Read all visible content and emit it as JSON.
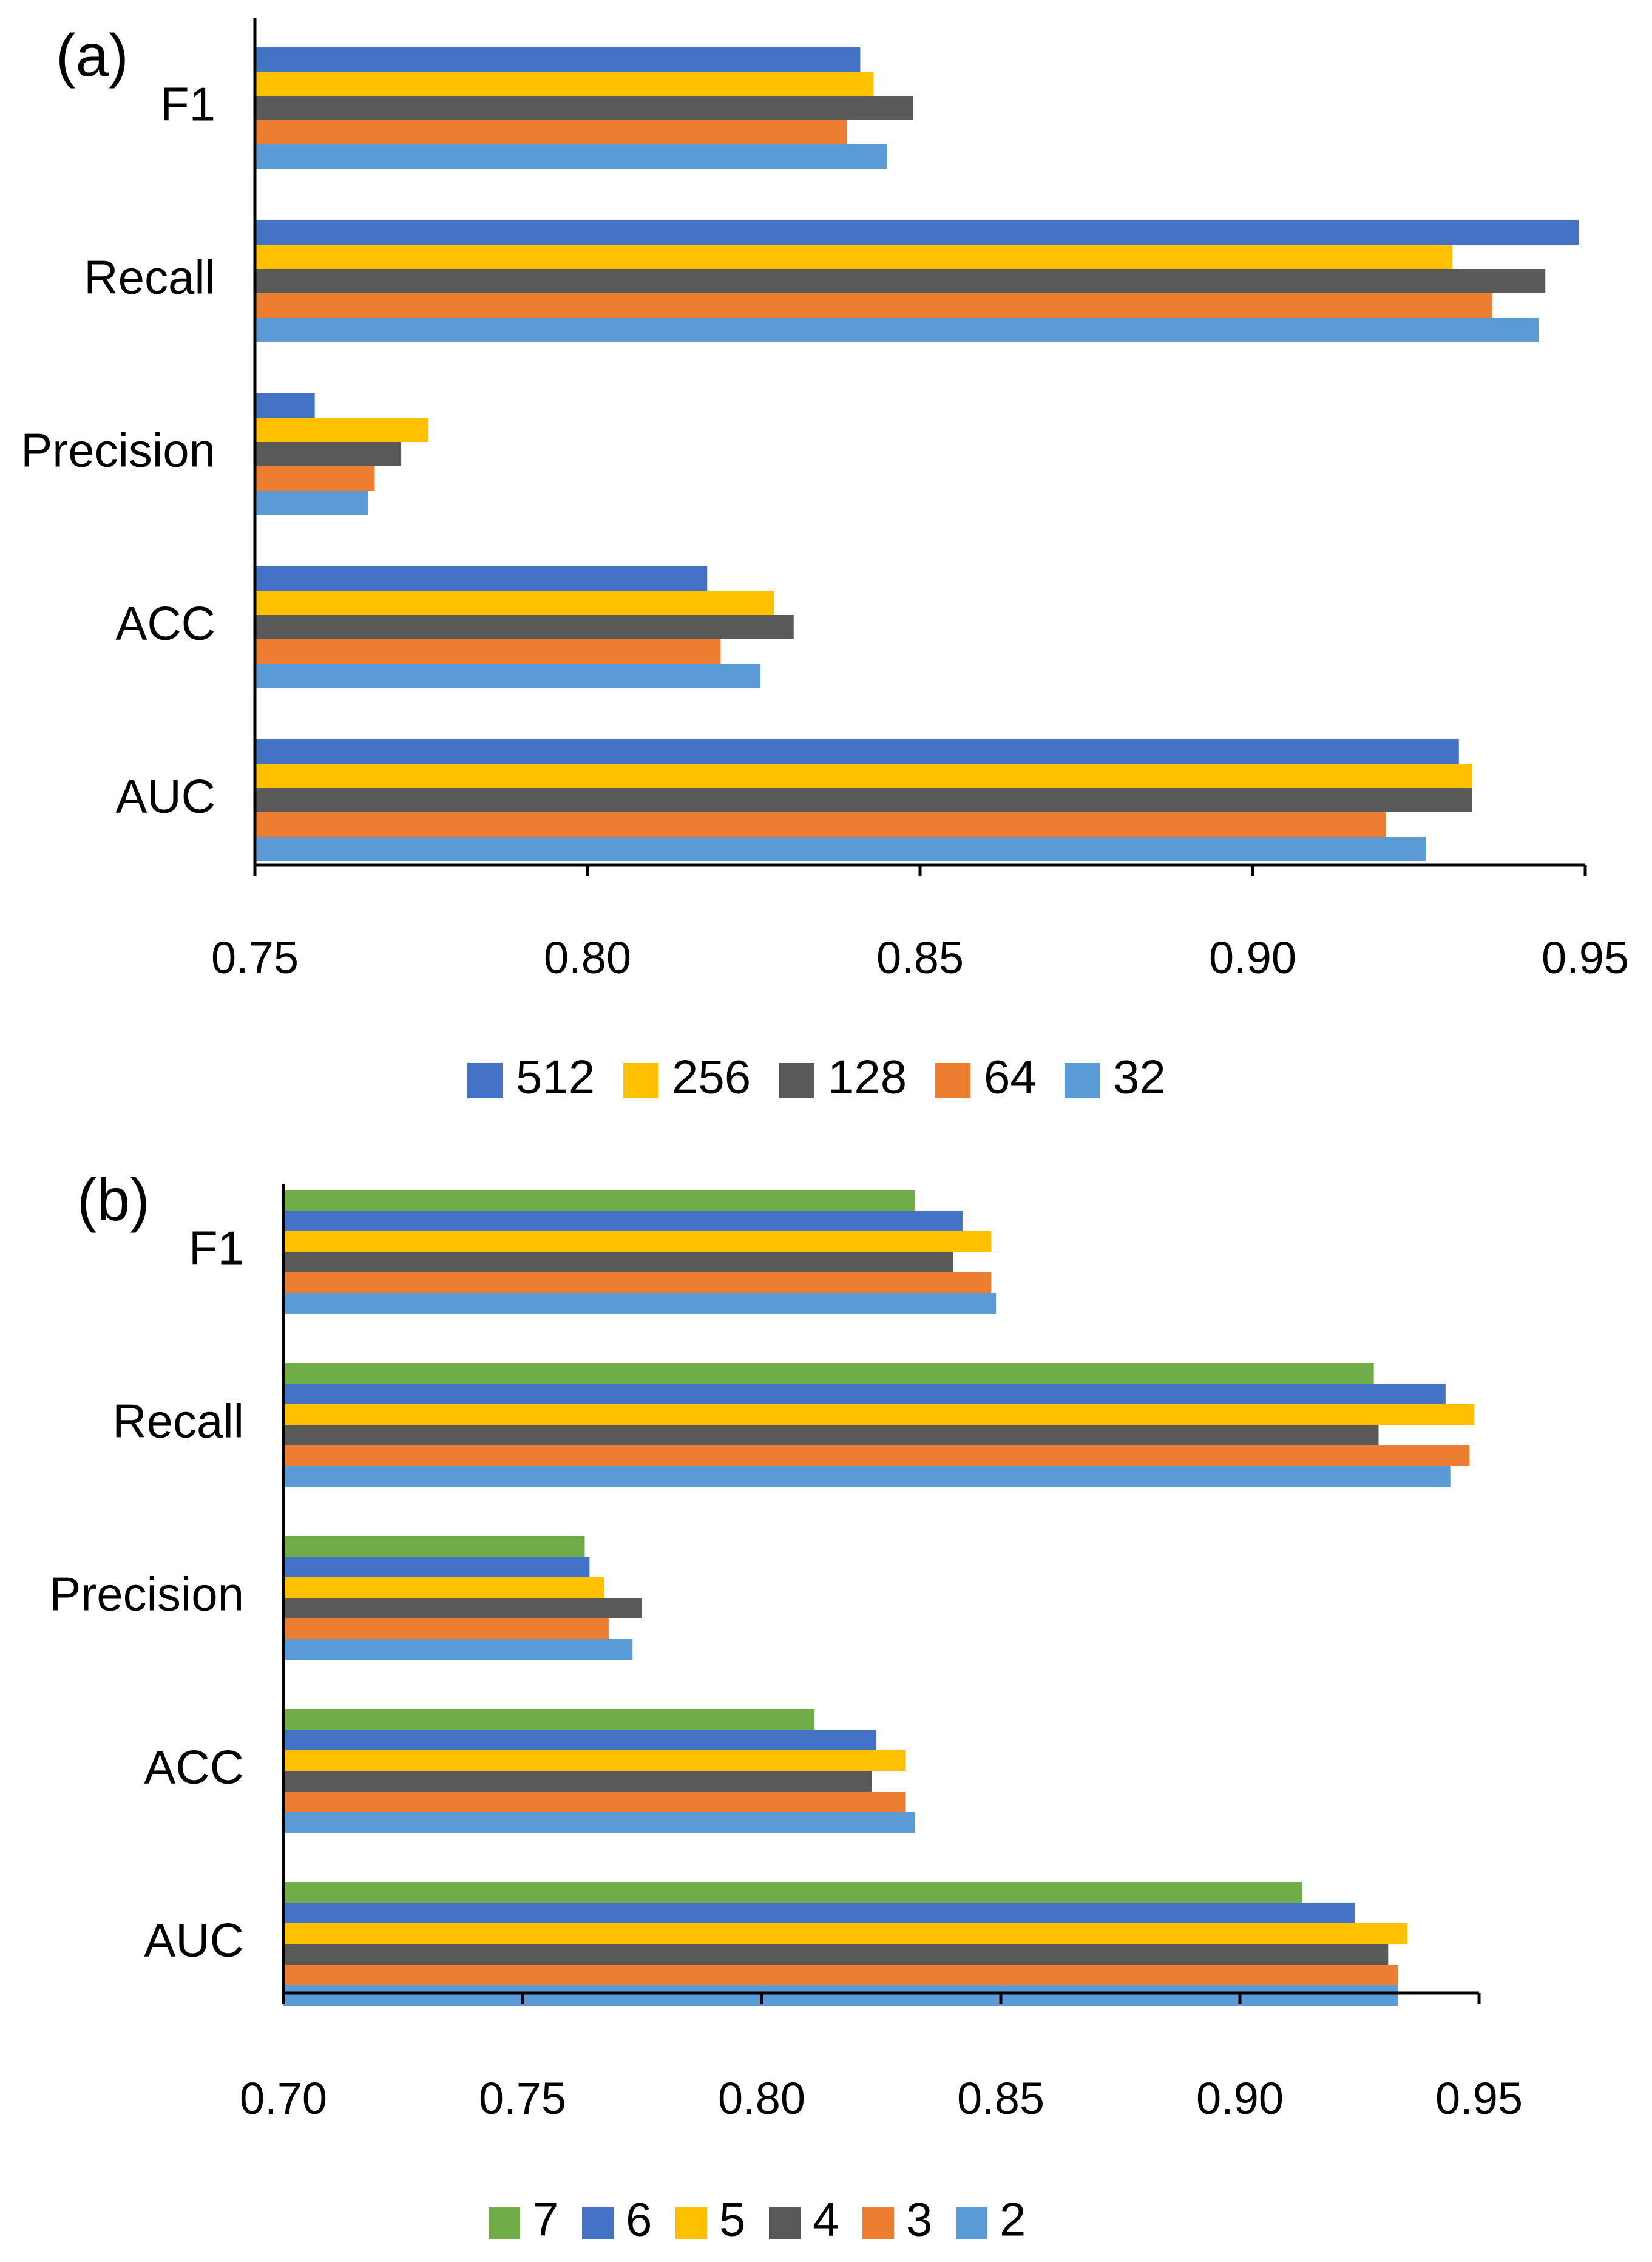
{
  "chart_data": [
    {
      "type": "bar",
      "orientation": "horizontal",
      "panel_label": "(a)",
      "categories": [
        "F1",
        "Recall",
        "Precision",
        "ACC",
        "AUC"
      ],
      "xlim": [
        0.75,
        0.95
      ],
      "xticks": [
        "0.75",
        "0.80",
        "0.85",
        "0.90",
        "0.95"
      ],
      "legend_position": "bottom",
      "series": [
        {
          "name": "512",
          "color": "#4472C4",
          "values": [
            0.841,
            0.949,
            0.759,
            0.818,
            0.931
          ]
        },
        {
          "name": "256",
          "color": "#FFC000",
          "values": [
            0.843,
            0.93,
            0.776,
            0.828,
            0.933
          ]
        },
        {
          "name": "128",
          "color": "#595959",
          "values": [
            0.849,
            0.944,
            0.772,
            0.831,
            0.933
          ]
        },
        {
          "name": "64",
          "color": "#ED7D31",
          "values": [
            0.839,
            0.936,
            0.768,
            0.82,
            0.92
          ]
        },
        {
          "name": "32",
          "color": "#5B9BD5",
          "values": [
            0.845,
            0.943,
            0.767,
            0.826,
            0.926
          ]
        }
      ]
    },
    {
      "type": "bar",
      "orientation": "horizontal",
      "panel_label": "(b)",
      "categories": [
        "F1",
        "Recall",
        "Precision",
        "ACC",
        "AUC"
      ],
      "xlim": [
        0.7,
        0.95
      ],
      "xticks": [
        "0.70",
        "0.75",
        "0.80",
        "0.85",
        "0.90",
        "0.95"
      ],
      "legend_position": "bottom",
      "series": [
        {
          "name": "7",
          "color": "#70AD47",
          "values": [
            0.832,
            0.928,
            0.763,
            0.811,
            0.913
          ]
        },
        {
          "name": "6",
          "color": "#4472C4",
          "values": [
            0.842,
            0.943,
            0.764,
            0.824,
            0.924
          ]
        },
        {
          "name": "5",
          "color": "#FFC000",
          "values": [
            0.848,
            0.949,
            0.767,
            0.83,
            0.935
          ]
        },
        {
          "name": "4",
          "color": "#595959",
          "values": [
            0.84,
            0.929,
            0.775,
            0.823,
            0.931
          ]
        },
        {
          "name": "3",
          "color": "#ED7D31",
          "values": [
            0.848,
            0.948,
            0.768,
            0.83,
            0.933
          ]
        },
        {
          "name": "2",
          "color": "#5B9BD5",
          "values": [
            0.849,
            0.944,
            0.773,
            0.832,
            0.933
          ]
        }
      ]
    }
  ]
}
